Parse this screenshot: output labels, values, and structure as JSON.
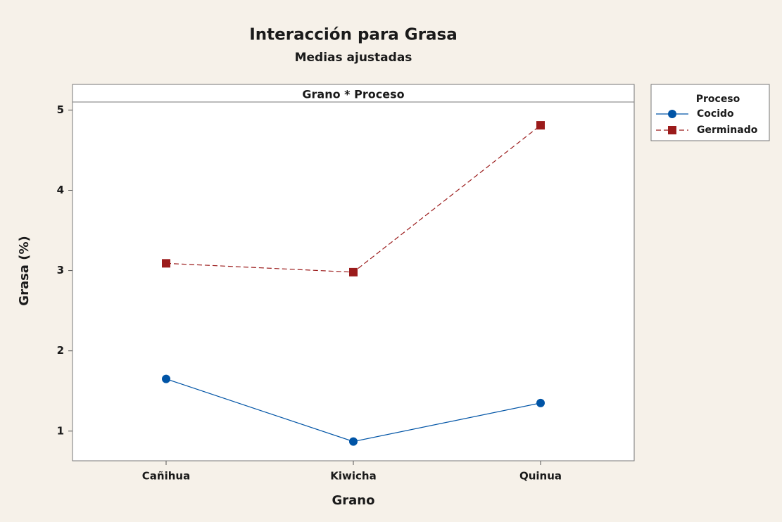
{
  "chart_data": {
    "type": "line",
    "title": "Interacción para Grasa",
    "subtitle": "Medias ajustadas",
    "panel_title": "Grano * Proceso",
    "xlabel": "Grano",
    "ylabel": "Grasa (%)",
    "legend_title": "Proceso",
    "legend_position": "right",
    "categories": [
      "Cañihua",
      "Kiwicha",
      "Quinua"
    ],
    "series": [
      {
        "name": "Cocido",
        "color": "#0054a6",
        "marker": "circle",
        "dash": "solid",
        "values": [
          1.65,
          0.87,
          1.35
        ]
      },
      {
        "name": "Germinado",
        "color": "#9b1b1b",
        "marker": "square",
        "dash": "dashed",
        "values": [
          3.09,
          2.98,
          4.81
        ]
      }
    ],
    "ylim": [
      0.63,
      5.1
    ],
    "yticks": [
      1,
      2,
      3,
      4,
      5
    ],
    "grid": false
  }
}
